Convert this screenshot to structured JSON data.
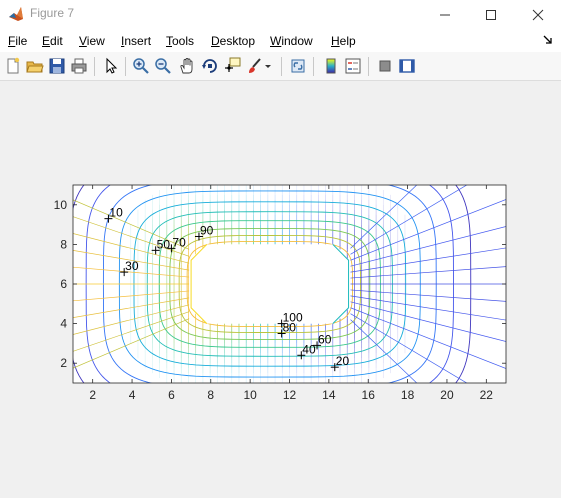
{
  "window": {
    "title": "Figure 7",
    "icon": "matlab-logo-icon",
    "controls": [
      "minimize-icon",
      "maximize-icon",
      "close-icon"
    ]
  },
  "menu": {
    "items": [
      {
        "accel": "F",
        "rest": "ile"
      },
      {
        "accel": "E",
        "rest": "dit"
      },
      {
        "accel": "V",
        "rest": "iew"
      },
      {
        "accel": "I",
        "rest": "nsert"
      },
      {
        "accel": "T",
        "rest": "ools"
      },
      {
        "accel": "D",
        "rest": "esktop"
      },
      {
        "accel": "W",
        "rest": "indow"
      },
      {
        "accel": "H",
        "rest": "elp"
      }
    ]
  },
  "toolbar": {
    "buttons": [
      "new-figure-icon",
      "open-file-icon",
      "save-icon",
      "print-icon",
      "edit-plot-arrow-icon",
      "zoom-in-icon",
      "zoom-out-icon",
      "pan-hand-icon",
      "rotate-3d-icon",
      "data-cursor-icon",
      "brush-icon",
      "link-plot-icon",
      "insert-colorbar-icon",
      "insert-legend-icon",
      "hide-plot-tools-icon",
      "show-plot-tools-icon"
    ]
  },
  "colors": {
    "title_text": "#999999",
    "axes_background": "#ffffff",
    "contour_low": "#3e26a8",
    "contour_high": "#f9fb0e"
  },
  "chart_data": {
    "type": "contour",
    "title": "",
    "xlabel": "",
    "ylabel": "",
    "xlim": [
      1,
      23
    ],
    "ylim": [
      1,
      11
    ],
    "xticks": [
      2,
      4,
      6,
      8,
      10,
      12,
      14,
      16,
      18,
      20,
      22
    ],
    "yticks": [
      2,
      4,
      6,
      8,
      10
    ],
    "hole": {
      "x_min": 7,
      "x_max": 15,
      "y_min": 4,
      "y_max": 8,
      "chamfer": 0.8
    },
    "left_boundary_value": 100,
    "right_boundary_value": 0,
    "levels": [
      10,
      20,
      30,
      40,
      50,
      60,
      70,
      80,
      90,
      100
    ],
    "annotations": [
      {
        "text": "10",
        "x": 2.8,
        "y": 9.3
      },
      {
        "text": "30",
        "x": 3.6,
        "y": 6.6
      },
      {
        "text": "50",
        "x": 5.2,
        "y": 7.7
      },
      {
        "text": "70",
        "x": 6.0,
        "y": 7.8
      },
      {
        "text": "90",
        "x": 7.4,
        "y": 8.4
      },
      {
        "text": "100",
        "x": 11.6,
        "y": 4.0
      },
      {
        "text": "80",
        "x": 11.6,
        "y": 3.5
      },
      {
        "text": "40",
        "x": 12.6,
        "y": 2.4
      },
      {
        "text": "60",
        "x": 13.4,
        "y": 2.9
      },
      {
        "text": "20",
        "x": 14.3,
        "y": 1.8
      }
    ]
  }
}
